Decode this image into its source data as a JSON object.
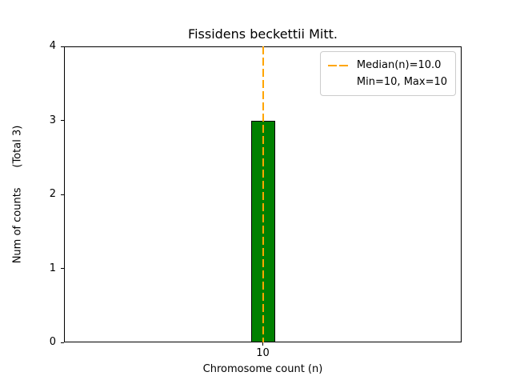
{
  "chart_data": {
    "type": "bar",
    "title": "Fissidens beckettii Mitt.",
    "xlabel": "Chromosome count (n)",
    "ylabel": "Num of counts      (Total 3)",
    "categories": [
      "10"
    ],
    "values": [
      3
    ],
    "total_counts": 3,
    "ylim": [
      0,
      4
    ],
    "yticks": [
      "0",
      "1",
      "2",
      "3",
      "4"
    ],
    "grid": false,
    "bar_color": "#008000",
    "bar_edge_color": "#000000",
    "median_line": {
      "x": "10",
      "value": 10.0,
      "color": "#FFA500",
      "style": "dashed"
    },
    "legend": {
      "position": "upper right",
      "items": [
        {
          "marker": "dashed-line",
          "color": "#FFA500",
          "label": "Median(n)=10.0"
        },
        {
          "marker": "none",
          "color": "",
          "label": "Min=10, Max=10"
        }
      ]
    }
  }
}
